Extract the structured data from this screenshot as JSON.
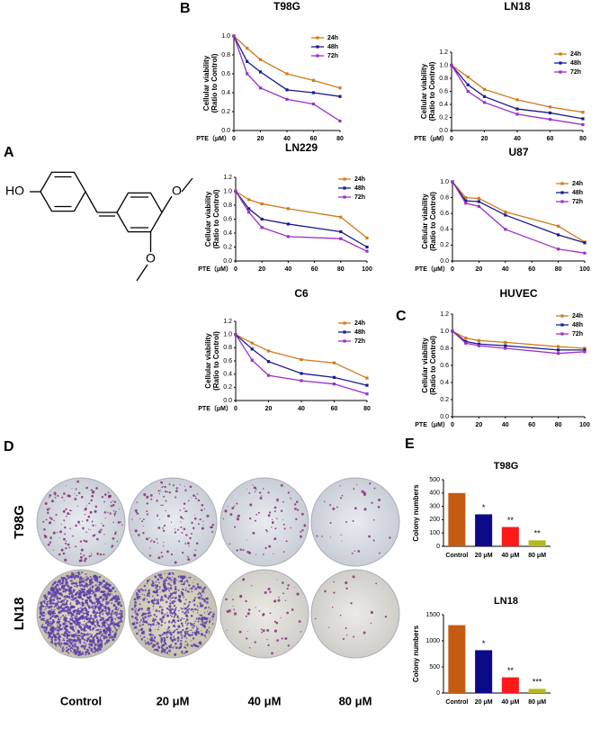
{
  "panels": [
    "A",
    "B",
    "C",
    "D",
    "E"
  ],
  "structure": {
    "hydroxyl": "HO",
    "oxygen_top": "O",
    "oxygen_bottom": "O"
  },
  "plates": {
    "rows": [
      "T98G",
      "LN18"
    ],
    "columns": [
      "Control",
      "20 μM",
      "40 μM",
      "80 μM"
    ]
  },
  "chart_data": [
    {
      "type": "line",
      "title": "T98G",
      "xlabel": "PTE（μM）",
      "ylabel": [
        "Cellular viability",
        "(Ratio to Control)"
      ],
      "x": [
        0,
        10,
        20,
        40,
        60,
        80
      ],
      "xlim": [
        0,
        80
      ],
      "xticks": [
        0,
        20,
        40,
        60,
        80
      ],
      "ylim": [
        0,
        1.0
      ],
      "yticks": [
        {
          "value": 0,
          "label": "0.0"
        },
        0.2,
        0.4,
        0.6,
        0.8,
        {
          "value": 1,
          "label": "1.0"
        }
      ],
      "series": [
        {
          "name": "24h",
          "color": "#d07a1b",
          "values": [
            1.0,
            0.87,
            0.75,
            0.6,
            0.53,
            0.45
          ]
        },
        {
          "name": "48h",
          "color": "#1a1a8c",
          "values": [
            1.0,
            0.73,
            0.62,
            0.43,
            0.4,
            0.36
          ]
        },
        {
          "name": "72h",
          "color": "#9b2fc9",
          "values": [
            1.0,
            0.6,
            0.45,
            0.33,
            0.28,
            0.1
          ]
        }
      ]
    },
    {
      "type": "line",
      "title": "LN18",
      "xlabel": "PTE（μM）",
      "ylabel": [
        "Cellular viability",
        "(Ratio to Control)"
      ],
      "x": [
        0,
        10,
        20,
        40,
        60,
        80
      ],
      "xlim": [
        0,
        80
      ],
      "xticks": [
        0,
        20,
        40,
        60,
        80
      ],
      "ylim": [
        0,
        1.2
      ],
      "yticks": [
        {
          "value": 0,
          "label": "0.0"
        },
        0.2,
        0.4,
        0.6,
        0.8,
        {
          "value": 1,
          "label": "1.0"
        },
        1.2
      ],
      "series": [
        {
          "name": "24h",
          "color": "#d07a1b",
          "values": [
            1.0,
            0.82,
            0.63,
            0.47,
            0.36,
            0.28
          ]
        },
        {
          "name": "48h",
          "color": "#1a1a8c",
          "values": [
            1.0,
            0.7,
            0.52,
            0.33,
            0.27,
            0.18
          ]
        },
        {
          "name": "72h",
          "color": "#9b2fc9",
          "values": [
            1.0,
            0.6,
            0.43,
            0.25,
            0.17,
            0.09
          ]
        }
      ]
    },
    {
      "type": "line",
      "title": "LN229",
      "xlabel": "PTE（μM）",
      "ylabel": [
        "Cellular viability",
        "(Ratio to Control)"
      ],
      "x": [
        0,
        10,
        20,
        40,
        80,
        100
      ],
      "xlim": [
        0,
        100
      ],
      "xticks": [
        0,
        20,
        40,
        60,
        80,
        100
      ],
      "ylim": [
        0,
        1.2
      ],
      "yticks": [
        {
          "value": 0,
          "label": "0.0"
        },
        0.2,
        0.4,
        0.6,
        0.8,
        {
          "value": 1,
          "label": "1.0"
        },
        1.2
      ],
      "series": [
        {
          "name": "24h",
          "color": "#d07a1b",
          "values": [
            1.0,
            0.88,
            0.82,
            0.75,
            0.63,
            0.33
          ]
        },
        {
          "name": "48h",
          "color": "#1a1a8c",
          "values": [
            1.0,
            0.75,
            0.6,
            0.53,
            0.42,
            0.2
          ]
        },
        {
          "name": "72h",
          "color": "#9b2fc9",
          "values": [
            1.0,
            0.7,
            0.48,
            0.35,
            0.32,
            0.14
          ]
        }
      ]
    },
    {
      "type": "line",
      "title": "U87",
      "xlabel": "PTE（μM）",
      "ylabel": [
        "Cellular viability",
        "(Ratio to Control)"
      ],
      "x": [
        0,
        10,
        20,
        40,
        80,
        100
      ],
      "xlim": [
        0,
        100
      ],
      "xticks": [
        0,
        20,
        40,
        60,
        80,
        100
      ],
      "ylim": [
        0,
        1.0
      ],
      "yticks": [
        {
          "value": 0,
          "label": "0.0"
        },
        0.2,
        0.4,
        0.6,
        0.8,
        {
          "value": 1,
          "label": "1.0"
        }
      ],
      "series": [
        {
          "name": "24h",
          "color": "#d07a1b",
          "values": [
            1.0,
            0.8,
            0.79,
            0.62,
            0.44,
            0.24
          ]
        },
        {
          "name": "48h",
          "color": "#1a1a8c",
          "values": [
            1.0,
            0.76,
            0.75,
            0.58,
            0.33,
            0.23
          ]
        },
        {
          "name": "72h",
          "color": "#9b2fc9",
          "values": [
            1.0,
            0.73,
            0.69,
            0.4,
            0.15,
            0.1
          ]
        }
      ]
    },
    {
      "type": "line",
      "title": "C6",
      "xlabel": "PTE（μM）",
      "ylabel": [
        "Cellular viability",
        "(Ratio to Control)"
      ],
      "x": [
        0,
        10,
        20,
        40,
        60,
        80
      ],
      "xlim": [
        0,
        80
      ],
      "xticks": [
        0,
        20,
        40,
        60,
        80
      ],
      "ylim": [
        0,
        1.2
      ],
      "yticks": [
        {
          "value": 0,
          "label": "0.0"
        },
        0.2,
        0.4,
        0.6,
        0.8,
        {
          "value": 1,
          "label": "1.0"
        },
        1.2
      ],
      "series": [
        {
          "name": "24h",
          "color": "#d07a1b",
          "values": [
            1.0,
            0.87,
            0.75,
            0.62,
            0.57,
            0.34
          ]
        },
        {
          "name": "48h",
          "color": "#1a1a8c",
          "values": [
            1.0,
            0.78,
            0.59,
            0.41,
            0.35,
            0.23
          ]
        },
        {
          "name": "72h",
          "color": "#9b2fc9",
          "values": [
            1.0,
            0.61,
            0.38,
            0.3,
            0.25,
            0.1
          ]
        }
      ]
    },
    {
      "type": "line",
      "title": "HUVEC",
      "xlabel": "PTE（μM）",
      "ylabel": [
        "Cellular viability",
        "(Ratio to Control)"
      ],
      "x": [
        0,
        10,
        20,
        40,
        80,
        100
      ],
      "xlim": [
        0,
        100
      ],
      "xticks": [
        0,
        20,
        40,
        60,
        80,
        100
      ],
      "ylim": [
        0,
        1.2
      ],
      "yticks": [
        {
          "value": 0,
          "label": "0.0"
        },
        0.2,
        0.4,
        0.6,
        0.8,
        {
          "value": 1,
          "label": "1.0"
        },
        1.2
      ],
      "series": [
        {
          "name": "24h",
          "color": "#d07a1b",
          "values": [
            1.0,
            0.92,
            0.89,
            0.87,
            0.82,
            0.8
          ]
        },
        {
          "name": "48h",
          "color": "#1a1a8c",
          "values": [
            1.0,
            0.88,
            0.85,
            0.83,
            0.78,
            0.78
          ]
        },
        {
          "name": "72h",
          "color": "#9b2fc9",
          "values": [
            1.0,
            0.86,
            0.83,
            0.8,
            0.74,
            0.76
          ]
        }
      ]
    },
    {
      "type": "bar",
      "title": "T98G",
      "ylabel": "Colony numbers",
      "categories": [
        "Control",
        "20 μM",
        "40 μM",
        "80 μM"
      ],
      "values": [
        400,
        240,
        145,
        45
      ],
      "colors": [
        "#c55a11",
        "#0b0b8a",
        "#ff1a1a",
        "#b8b81c"
      ],
      "annotations": [
        null,
        "*",
        "**",
        "**"
      ],
      "ylim": [
        0,
        500
      ],
      "yticks": [
        0,
        100,
        200,
        300,
        400,
        500
      ]
    },
    {
      "type": "bar",
      "title": "LN18",
      "ylabel": "Colony numbers",
      "categories": [
        "Control",
        "20 μM",
        "40 μM",
        "80 μM"
      ],
      "values": [
        1300,
        820,
        300,
        80
      ],
      "colors": [
        "#c55a11",
        "#0b0b8a",
        "#ff1a1a",
        "#b8b81c"
      ],
      "annotations": [
        null,
        "*",
        "**",
        "***"
      ],
      "ylim": [
        0,
        1500
      ],
      "yticks": [
        0,
        500,
        1000,
        1500
      ]
    }
  ]
}
